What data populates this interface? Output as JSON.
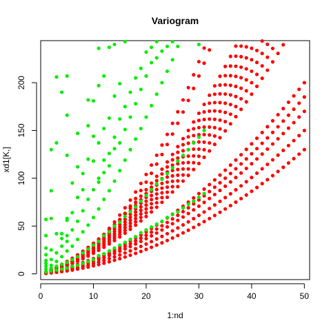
{
  "chart_data": {
    "type": "scatter",
    "title": "Variogram",
    "xlabel": "1:nd",
    "ylabel": "xd1[K,]",
    "xlim": [
      0,
      51
    ],
    "ylim": [
      -6,
      244
    ],
    "xticks": [
      0,
      10,
      20,
      30,
      40,
      50
    ],
    "yticks": [
      0,
      50,
      100,
      150,
      200
    ],
    "grid": false,
    "point_shape": "filled-circle",
    "series": [
      {
        "color": "#ff0000",
        "curves": [
          {
            "a": 0.06,
            "b": 1.0
          },
          {
            "a": 0.056,
            "b": 0.9
          },
          {
            "a": 0.052,
            "b": 0.8
          },
          {
            "a": 0.048,
            "b": 0.6
          },
          {
            "a": 0.044,
            "b": 0.4
          },
          {
            "a": 0.12,
            "b": 2.0
          },
          {
            "a": 0.115,
            "b": 1.9
          },
          {
            "a": 0.11,
            "b": 1.8
          },
          {
            "a": 0.105,
            "b": 1.7
          },
          {
            "a": 0.1,
            "b": 1.6
          },
          {
            "a": 0.095,
            "b": 1.5
          },
          {
            "a": 0.09,
            "b": 1.4
          },
          {
            "a": 0.085,
            "b": 1.3
          },
          {
            "a": 0.22,
            "b": 0.8
          },
          {
            "a": 0.21,
            "b": 0.6
          }
        ]
      },
      {
        "color": "#00ee00",
        "points": [
          [
            1,
            2
          ],
          [
            1,
            5
          ],
          [
            1,
            8
          ],
          [
            1,
            11
          ],
          [
            1,
            14
          ],
          [
            1,
            20
          ],
          [
            1,
            27
          ],
          [
            1,
            40
          ],
          [
            1,
            57
          ],
          [
            2,
            3
          ],
          [
            2,
            6
          ],
          [
            2,
            9
          ],
          [
            2,
            15
          ],
          [
            2,
            25
          ],
          [
            2,
            58
          ],
          [
            2,
            87
          ],
          [
            2,
            130
          ],
          [
            3,
            4
          ],
          [
            3,
            8
          ],
          [
            3,
            13
          ],
          [
            3,
            22
          ],
          [
            3,
            42
          ],
          [
            3,
            137
          ],
          [
            3,
            206
          ],
          [
            4,
            5
          ],
          [
            4,
            10
          ],
          [
            4,
            18
          ],
          [
            4,
            29
          ],
          [
            4,
            37
          ],
          [
            4,
            42
          ],
          [
            4,
            190
          ],
          [
            5,
            6
          ],
          [
            5,
            12
          ],
          [
            5,
            24
          ],
          [
            5,
            34
          ],
          [
            5,
            40
          ],
          [
            5,
            56
          ],
          [
            5,
            58
          ],
          [
            5,
            124
          ],
          [
            5,
            166
          ],
          [
            5,
            207
          ],
          [
            6,
            8
          ],
          [
            6,
            15
          ],
          [
            6,
            29
          ],
          [
            6,
            46
          ],
          [
            6,
            64
          ],
          [
            6,
            95
          ],
          [
            7,
            9
          ],
          [
            7,
            18
          ],
          [
            7,
            36
          ],
          [
            7,
            55
          ],
          [
            7,
            80
          ],
          [
            7,
            112
          ],
          [
            7,
            147
          ],
          [
            8,
            11
          ],
          [
            8,
            22
          ],
          [
            8,
            44
          ],
          [
            8,
            66
          ],
          [
            8,
            88
          ],
          [
            8,
            105
          ],
          [
            9,
            13
          ],
          [
            9,
            26
          ],
          [
            9,
            51
          ],
          [
            9,
            78
          ],
          [
            9,
            120
          ],
          [
            9,
            155
          ],
          [
            9,
            182
          ],
          [
            10,
            15
          ],
          [
            10,
            30
          ],
          [
            10,
            59
          ],
          [
            10,
            88
          ],
          [
            10,
            118
          ],
          [
            10,
            144
          ],
          [
            10,
            181
          ],
          [
            11,
            19
          ],
          [
            11,
            34
          ],
          [
            11,
            68
          ],
          [
            11,
            96
          ],
          [
            11,
            100
          ],
          [
            11,
            137
          ],
          [
            11,
            197
          ],
          [
            11,
            236
          ],
          [
            12,
            21
          ],
          [
            12,
            40
          ],
          [
            12,
            78
          ],
          [
            12,
            106
          ],
          [
            12,
            119
          ],
          [
            12,
            152
          ],
          [
            12,
            207
          ],
          [
            13,
            24
          ],
          [
            13,
            44
          ],
          [
            13,
            87
          ],
          [
            13,
            113
          ],
          [
            13,
            126
          ],
          [
            13,
            163
          ],
          [
            13,
            237
          ],
          [
            14,
            27
          ],
          [
            14,
            50
          ],
          [
            14,
            97
          ],
          [
            14,
            131
          ],
          [
            14,
            143
          ],
          [
            14,
            186
          ],
          [
            14,
            240
          ],
          [
            15,
            30
          ],
          [
            15,
            54
          ],
          [
            15,
            108
          ],
          [
            15,
            137
          ],
          [
            15,
            162
          ],
          [
            15,
            199
          ],
          [
            16,
            33
          ],
          [
            16,
            60
          ],
          [
            16,
            119
          ],
          [
            16,
            151
          ],
          [
            16,
            175
          ],
          [
            16,
            243
          ],
          [
            17,
            36
          ],
          [
            17,
            65
          ],
          [
            17,
            130
          ],
          [
            17,
            164
          ],
          [
            17,
            190
          ],
          [
            18,
            39
          ],
          [
            18,
            70
          ],
          [
            18,
            141
          ],
          [
            18,
            178
          ],
          [
            18,
            205
          ],
          [
            19,
            43
          ],
          [
            19,
            76
          ],
          [
            19,
            152
          ],
          [
            19,
            193
          ],
          [
            19,
            215
          ],
          [
            20,
            46
          ],
          [
            20,
            82
          ],
          [
            20,
            164
          ],
          [
            20,
            207
          ],
          [
            20,
            232
          ],
          [
            21,
            49
          ],
          [
            21,
            88
          ],
          [
            21,
            176
          ],
          [
            21,
            221
          ],
          [
            21,
            237
          ],
          [
            22,
            52
          ],
          [
            22,
            94
          ],
          [
            22,
            188
          ],
          [
            22,
            226
          ],
          [
            22,
            243
          ],
          [
            23,
            55
          ],
          [
            23,
            99
          ],
          [
            23,
            200
          ],
          [
            23,
            233
          ],
          [
            24,
            59
          ],
          [
            24,
            105
          ],
          [
            24,
            212
          ],
          [
            24,
            238
          ],
          [
            25,
            62
          ],
          [
            25,
            111
          ],
          [
            25,
            224
          ],
          [
            25,
            243
          ],
          [
            26,
            65
          ],
          [
            26,
            118
          ],
          [
            26,
            238
          ],
          [
            27,
            69
          ],
          [
            27,
            124
          ],
          [
            28,
            73
          ],
          [
            28,
            130
          ],
          [
            29,
            76
          ],
          [
            29,
            137
          ],
          [
            30,
            80
          ],
          [
            30,
            143
          ],
          [
            30,
            240
          ],
          [
            31,
            84
          ],
          [
            31,
            150
          ]
        ]
      }
    ]
  }
}
